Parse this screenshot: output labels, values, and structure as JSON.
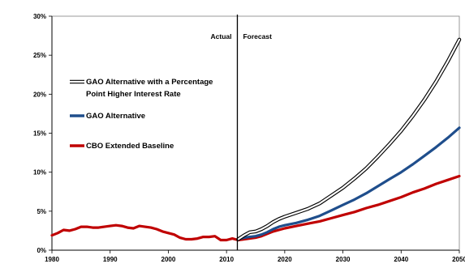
{
  "chart_data": {
    "type": "line",
    "title": "",
    "xlabel": "",
    "ylabel": "",
    "xlim": [
      1980,
      2050
    ],
    "ylim": [
      0,
      30
    ],
    "grid": false,
    "x_ticks": [
      1980,
      1990,
      2000,
      2010,
      2020,
      2030,
      2040,
      2050
    ],
    "y_ticks": [
      {
        "value": 0,
        "label": "0%"
      },
      {
        "value": 5,
        "label": "5%"
      },
      {
        "value": 10,
        "label": "10%"
      },
      {
        "value": 15,
        "label": "15%"
      },
      {
        "value": 20,
        "label": "20%"
      },
      {
        "value": 25,
        "label": "25%"
      },
      {
        "value": 30,
        "label": "30%"
      }
    ],
    "divider": {
      "x": 2012,
      "left_label": "Actual",
      "right_label": "Forecast"
    },
    "legend_placement": "upper-left",
    "history": {
      "x": [
        1980,
        1981,
        1982,
        1983,
        1984,
        1985,
        1986,
        1987,
        1988,
        1989,
        1990,
        1991,
        1992,
        1993,
        1994,
        1995,
        1996,
        1997,
        1998,
        1999,
        2000,
        2001,
        2002,
        2003,
        2004,
        2005,
        2006,
        2007,
        2008,
        2009,
        2010,
        2011,
        2012
      ],
      "values": [
        1.9,
        2.2,
        2.6,
        2.5,
        2.7,
        3.0,
        3.0,
        2.9,
        2.9,
        3.0,
        3.1,
        3.2,
        3.1,
        2.9,
        2.8,
        3.1,
        3.0,
        2.9,
        2.7,
        2.4,
        2.2,
        2.0,
        1.6,
        1.4,
        1.4,
        1.5,
        1.7,
        1.7,
        1.8,
        1.3,
        1.3,
        1.5,
        1.3
      ]
    },
    "series": [
      {
        "name": "GAO Alternative with a Percentage Point Higher Interest Rate",
        "color": "#000000",
        "style": "outlined",
        "x": [
          2012,
          2013,
          2014,
          2015,
          2016,
          2017,
          2018,
          2019,
          2020,
          2022,
          2024,
          2026,
          2028,
          2030,
          2032,
          2034,
          2036,
          2038,
          2040,
          2042,
          2044,
          2046,
          2048,
          2050
        ],
        "values": [
          1.4,
          1.9,
          2.3,
          2.4,
          2.7,
          3.1,
          3.6,
          4.0,
          4.3,
          4.8,
          5.3,
          6.0,
          7.0,
          8.0,
          9.2,
          10.5,
          12.0,
          13.6,
          15.3,
          17.2,
          19.3,
          21.6,
          24.2,
          27.0
        ]
      },
      {
        "name": "GAO Alternative",
        "color": "#1f4e8c",
        "style": "solid",
        "x": [
          2012,
          2013,
          2014,
          2015,
          2016,
          2017,
          2018,
          2019,
          2020,
          2022,
          2024,
          2026,
          2028,
          2030,
          2032,
          2034,
          2036,
          2038,
          2040,
          2042,
          2044,
          2046,
          2048,
          2050
        ],
        "values": [
          1.4,
          1.6,
          1.7,
          1.8,
          2.0,
          2.3,
          2.7,
          3.0,
          3.2,
          3.5,
          3.9,
          4.4,
          5.1,
          5.8,
          6.5,
          7.3,
          8.2,
          9.1,
          10.0,
          11.0,
          12.1,
          13.2,
          14.4,
          15.7
        ]
      },
      {
        "name": "CBO Extended Baseline",
        "color": "#c00000",
        "style": "solid",
        "x": [
          2012,
          2013,
          2014,
          2015,
          2016,
          2017,
          2018,
          2019,
          2020,
          2022,
          2024,
          2026,
          2028,
          2030,
          2032,
          2034,
          2036,
          2038,
          2040,
          2042,
          2044,
          2046,
          2048,
          2050
        ],
        "values": [
          1.3,
          1.4,
          1.5,
          1.6,
          1.8,
          2.1,
          2.4,
          2.6,
          2.8,
          3.1,
          3.4,
          3.7,
          4.1,
          4.5,
          4.9,
          5.4,
          5.8,
          6.3,
          6.8,
          7.4,
          7.9,
          8.5,
          9.0,
          9.5
        ]
      }
    ]
  }
}
